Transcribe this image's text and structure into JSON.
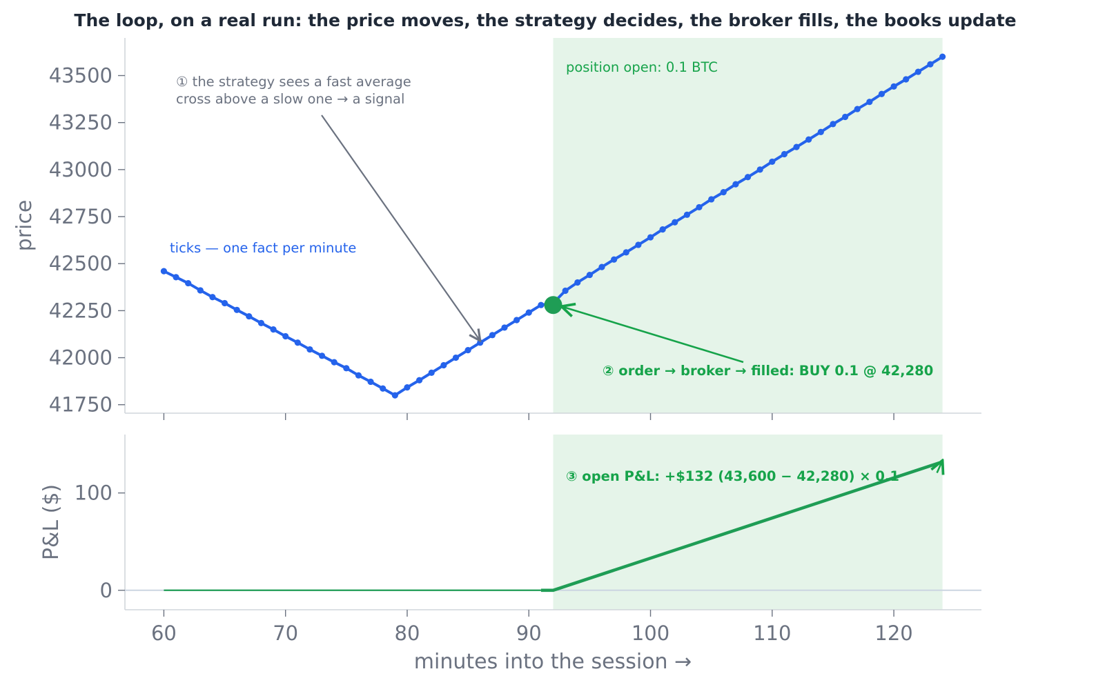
{
  "colors": {
    "price_line": "#2563eb",
    "pnl_line": "#1f9d55",
    "fill_marker": "#1f9d55",
    "position_shade": "#e5f4e9",
    "annotation_grey": "#6b7280",
    "annotation_green": "#16a34a",
    "annotation_blue": "#2563eb"
  },
  "chart_data": [
    {
      "type": "line",
      "title": "The loop, on a real run: the price moves, the strategy decides, the broker fills, the books update",
      "xlabel": "",
      "ylabel": "price",
      "xlim": [
        56.8,
        127.2
      ],
      "ylim": [
        41705,
        43700
      ],
      "yticks": [
        41750,
        42000,
        42250,
        42500,
        42750,
        43000,
        43250,
        43500
      ],
      "xticks": [
        60,
        70,
        80,
        90,
        100,
        110,
        120
      ],
      "grid": false,
      "series": [
        {
          "name": "",
          "points": [
            [
              60,
              42460
            ],
            [
              61,
              42428
            ],
            [
              62,
              42396
            ],
            [
              63,
              42358
            ],
            [
              64,
              42322
            ],
            [
              65,
              42290
            ],
            [
              66,
              42254
            ],
            [
              67,
              42220
            ],
            [
              68,
              42184
            ],
            [
              69,
              42150
            ],
            [
              70,
              42114
            ],
            [
              71,
              42080
            ],
            [
              72,
              42044
            ],
            [
              73,
              42010
            ],
            [
              74,
              41976
            ],
            [
              75,
              41944
            ],
            [
              76,
              41906
            ],
            [
              77,
              41872
            ],
            [
              78,
              41836
            ],
            [
              79,
              41800
            ],
            [
              80,
              41842
            ],
            [
              81,
              41880
            ],
            [
              82,
              41920
            ],
            [
              83,
              41960
            ],
            [
              84,
              42000
            ],
            [
              85,
              42040
            ],
            [
              86,
              42080
            ],
            [
              87,
              42120
            ],
            [
              88,
              42160
            ],
            [
              89,
              42200
            ],
            [
              90,
              42240
            ],
            [
              91,
              42280
            ],
            [
              92,
              42290
            ],
            [
              93,
              42356
            ],
            [
              94,
              42400
            ],
            [
              95,
              42440
            ],
            [
              96,
              42482
            ],
            [
              97,
              42522
            ],
            [
              98,
              42560
            ],
            [
              99,
              42600
            ],
            [
              100,
              42640
            ],
            [
              101,
              42682
            ],
            [
              102,
              42720
            ],
            [
              103,
              42760
            ],
            [
              104,
              42800
            ],
            [
              105,
              42842
            ],
            [
              106,
              42880
            ],
            [
              107,
              42922
            ],
            [
              108,
              42960
            ],
            [
              109,
              43000
            ],
            [
              110,
              43042
            ],
            [
              111,
              43082
            ],
            [
              112,
              43120
            ],
            [
              113,
              43160
            ],
            [
              114,
              43200
            ],
            [
              115,
              43242
            ],
            [
              116,
              43280
            ],
            [
              117,
              43322
            ],
            [
              118,
              43360
            ],
            [
              119,
              43402
            ],
            [
              120,
              43442
            ],
            [
              121,
              43480
            ],
            [
              122,
              43520
            ],
            [
              123,
              43560
            ],
            [
              124,
              43600
            ]
          ]
        }
      ],
      "fill_point": {
        "x": 92,
        "y": 42280
      },
      "position_span": [
        92,
        124
      ],
      "annotations": {
        "signal_line1": "① the strategy sees a fast average",
        "signal_line2": "cross above a slow one → a signal",
        "ticks_note": "ticks — one fact per minute",
        "position_note": "position open: 0.1 BTC",
        "fill_note": "② order → broker → filled: BUY 0.1 @ 42,280"
      },
      "signal_arrow_target": {
        "x": 86,
        "y": 42090
      }
    },
    {
      "type": "line",
      "xlabel": "minutes into the session →",
      "ylabel": "P&L ($)",
      "xlim": [
        56.8,
        127.2
      ],
      "ylim": [
        -20,
        160
      ],
      "yticks": [
        0,
        100
      ],
      "xticks": [
        60,
        70,
        80,
        90,
        100,
        110,
        120
      ],
      "grid": false,
      "series": [
        {
          "name": "",
          "points": [
            [
              60,
              0
            ],
            [
              91,
              0
            ],
            [
              92,
              0
            ],
            [
              124,
              132
            ]
          ]
        }
      ],
      "position_span": [
        92,
        124
      ],
      "annotations": {
        "pnl_note": "③ open P&L: +$132   (43,600 − 42,280) × 0.1"
      }
    }
  ]
}
